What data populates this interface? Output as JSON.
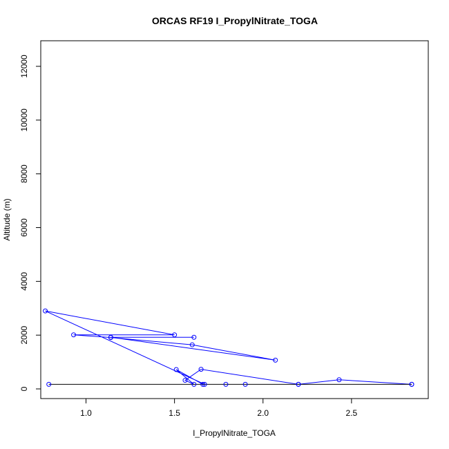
{
  "chart_data": {
    "type": "line",
    "title": "ORCAS RF19 I_PropylNitrate_TOGA",
    "xlabel": "I_PropylNitrate_TOGA",
    "ylabel": "Altitude (m)",
    "xlim": [
      0.76,
      2.84
    ],
    "ylim": [
      0,
      12900
    ],
    "x_ticks": [
      1.0,
      1.5,
      2.0,
      2.5
    ],
    "x_tick_labels": [
      "1.0",
      "1.5",
      "2.0",
      "2.5"
    ],
    "y_ticks": [
      0,
      2000,
      4000,
      6000,
      8000,
      10000,
      12000
    ],
    "y_tick_labels": [
      "0",
      "2000",
      "4000",
      "6000",
      "8000",
      "10000",
      "12000"
    ],
    "grid": false,
    "series": [
      {
        "color": "#0000ff",
        "marker": "open-circle",
        "points": [
          {
            "x": 1.61,
            "y": 1920
          },
          {
            "x": 1.14,
            "y": 1920
          },
          {
            "x": 2.07,
            "y": 1070
          },
          {
            "x": 1.6,
            "y": 1640
          },
          {
            "x": 1.14,
            "y": 1910
          },
          {
            "x": 0.93,
            "y": 2010
          },
          {
            "x": 1.5,
            "y": 2010
          },
          {
            "x": 0.77,
            "y": 2900
          },
          {
            "x": 1.67,
            "y": 170
          },
          {
            "x": 1.66,
            "y": 170
          },
          {
            "x": 1.51,
            "y": 720
          },
          {
            "x": 1.61,
            "y": 170
          },
          {
            "x": 1.56,
            "y": 320
          },
          {
            "x": 1.65,
            "y": 730
          },
          {
            "x": 2.2,
            "y": 170
          },
          {
            "x": 2.43,
            "y": 340
          },
          {
            "x": 2.84,
            "y": 170
          }
        ]
      },
      {
        "color": "#000000",
        "marker": "open-circle",
        "marker_color": "#0000ff",
        "points": [
          {
            "x": 0.79,
            "y": 170
          },
          {
            "x": 1.79,
            "y": 170
          },
          {
            "x": 1.9,
            "y": 170
          },
          {
            "x": 2.2,
            "y": 170
          },
          {
            "x": 2.84,
            "y": 170
          }
        ]
      }
    ]
  }
}
